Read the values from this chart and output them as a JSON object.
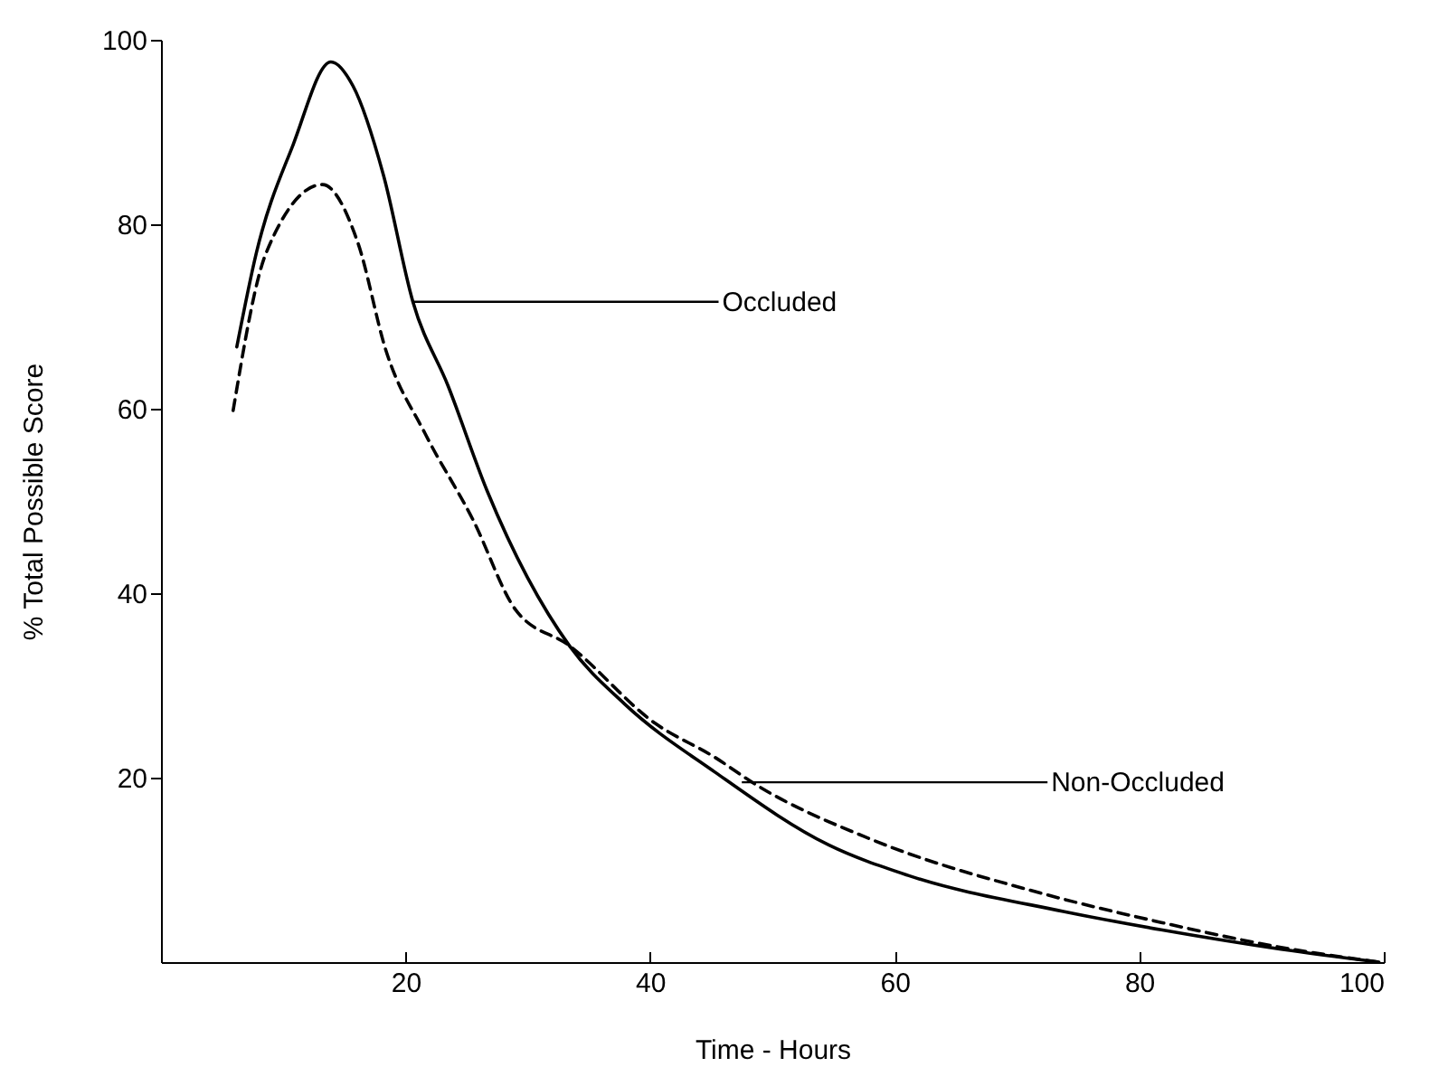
{
  "chart_data": {
    "type": "line",
    "xlabel": "Time - Hours",
    "ylabel": "% Total Possible Score",
    "xlim": [
      0,
      100
    ],
    "xticks": [
      20,
      40,
      60,
      80,
      100
    ],
    "ylim": [
      0,
      100
    ],
    "yticks": [
      20,
      40,
      60,
      80,
      100
    ],
    "grid": false,
    "marker": "none",
    "series": [
      {
        "color": "#000000",
        "line_style": "solid",
        "x": [
          6.2,
          7.8,
          10.8,
          13.9,
          15.7,
          18.2,
          20.6,
          23.5,
          26.7,
          33.4,
          37.9,
          45.3,
          54.6,
          61.1,
          73.8,
          81.8,
          91.6,
          99.6
        ],
        "values": [
          66.7,
          76.9,
          88.6,
          97.6,
          95,
          85.3,
          71.6,
          62.4,
          51,
          34.3,
          28,
          20.6,
          12.7,
          9.4,
          5.5,
          3.5,
          1.4,
          0
        ]
      },
      {
        "color": "#000000",
        "line_style": "dashed",
        "x": [
          5.9,
          8.6,
          13.2,
          16.1,
          18.4,
          21.6,
          25.5,
          29,
          33.4,
          40.4,
          45.3,
          48.7,
          58.1,
          71.9,
          81.8,
          91.6,
          99.6
        ],
        "values": [
          59.8,
          76.9,
          84.3,
          78,
          66.3,
          57.3,
          48,
          38.2,
          34.3,
          25.9,
          22.2,
          19.2,
          13.3,
          7.5,
          4.3,
          1.6,
          0
        ]
      }
    ],
    "annotations": [
      {
        "text": "Occluded",
        "x": 20.6,
        "y": 71.6
      },
      {
        "text": "Non-Occluded",
        "x": 47.5,
        "y": 19.5
      }
    ]
  }
}
